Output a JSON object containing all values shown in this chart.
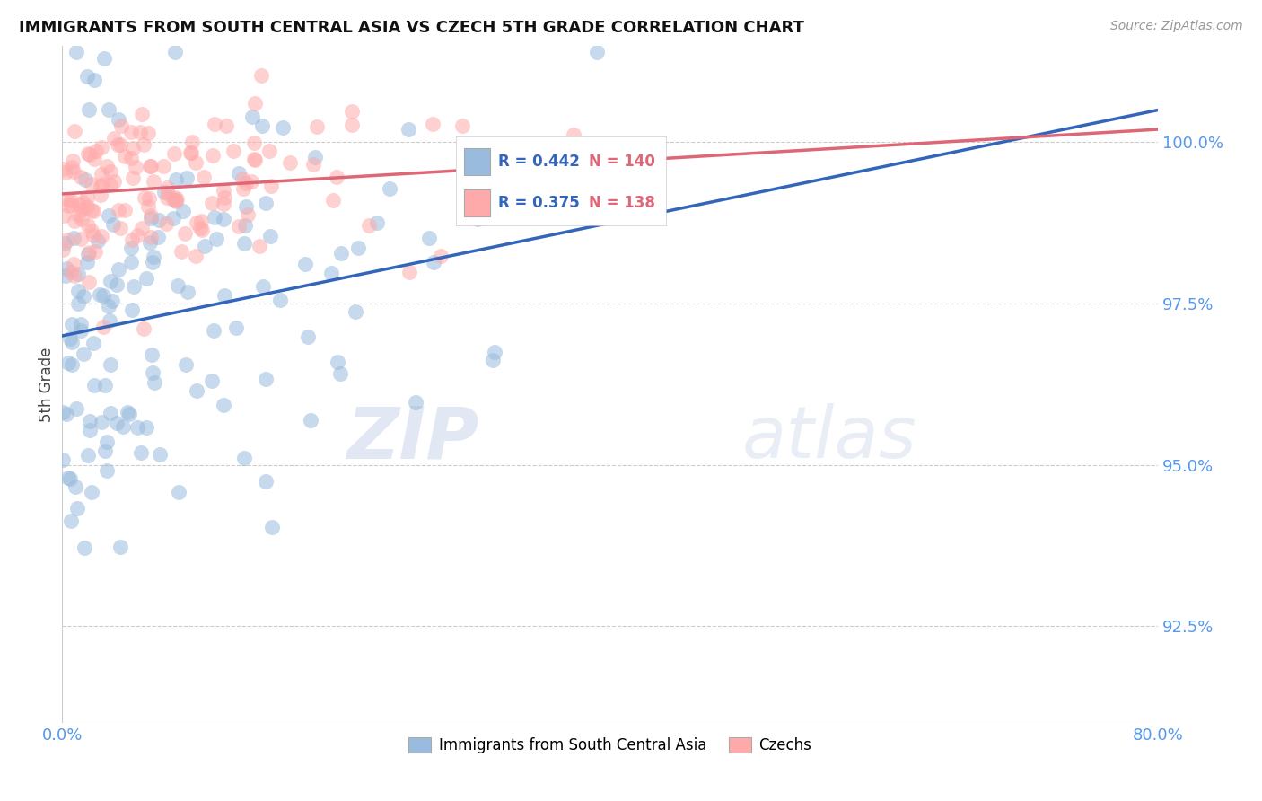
{
  "title": "IMMIGRANTS FROM SOUTH CENTRAL ASIA VS CZECH 5TH GRADE CORRELATION CHART",
  "source": "Source: ZipAtlas.com",
  "ylabel": "5th Grade",
  "xlim": [
    0.0,
    80.0
  ],
  "ylim": [
    91.0,
    101.5
  ],
  "yticks": [
    92.5,
    95.0,
    97.5,
    100.0
  ],
  "xticks_pos": [
    0,
    20,
    40,
    60,
    80
  ],
  "xticks_labels": [
    "0.0%",
    "",
    "",
    "",
    "80.0%"
  ],
  "blue_R": 0.442,
  "blue_N": 140,
  "pink_R": 0.375,
  "pink_N": 138,
  "blue_color": "#99BBDD",
  "pink_color": "#FFAAAA",
  "blue_line_color": "#3366BB",
  "pink_line_color": "#DD6677",
  "legend_blue_label": "Immigrants from South Central Asia",
  "legend_pink_label": "Czechs",
  "watermark_zip": "ZIP",
  "watermark_atlas": "atlas",
  "background_color": "#FFFFFF",
  "blue_seed": 42,
  "pink_seed": 99
}
